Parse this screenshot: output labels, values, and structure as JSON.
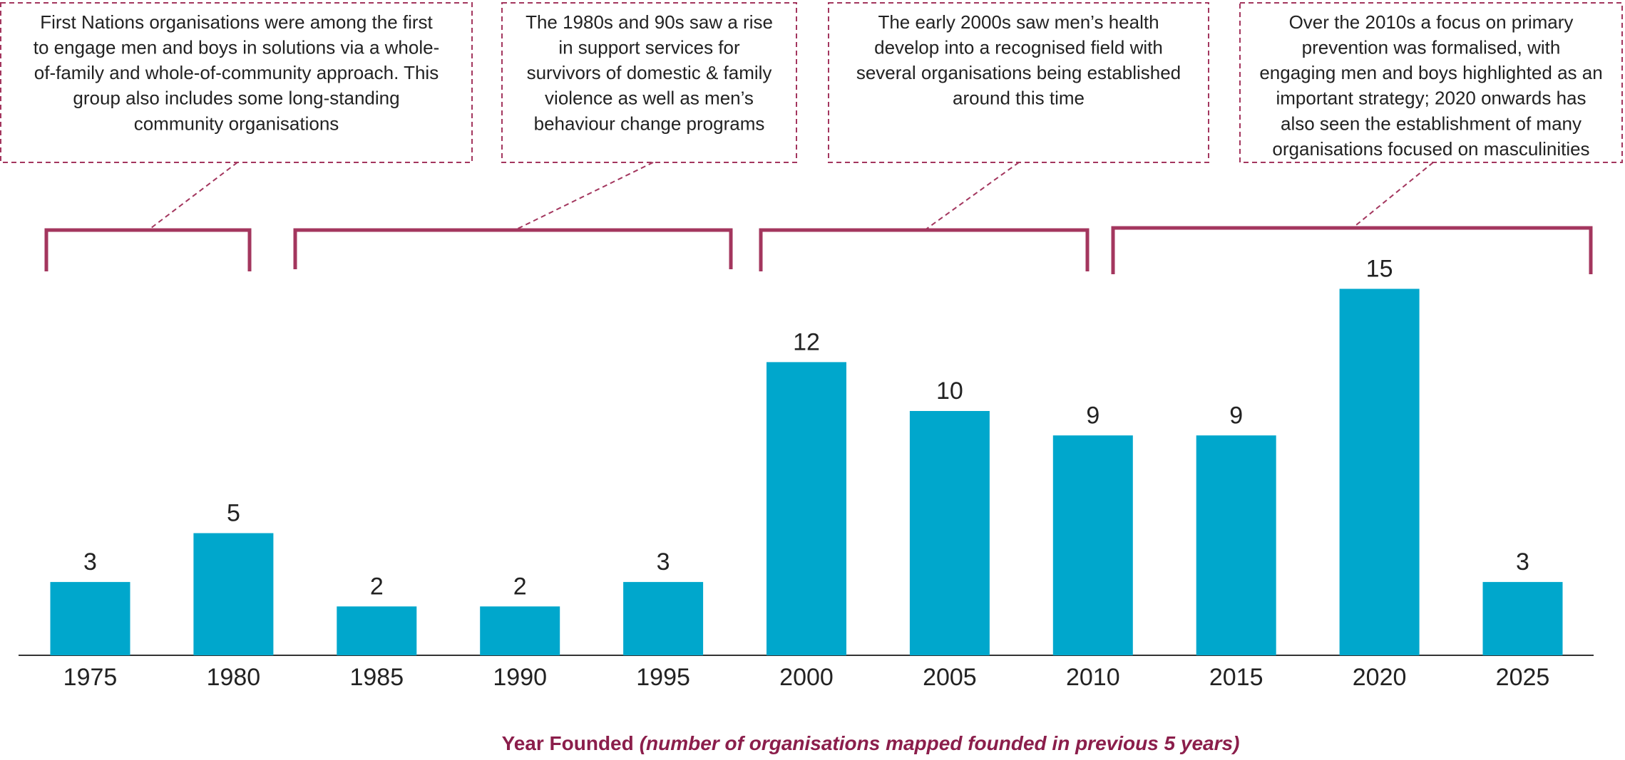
{
  "chart_data": {
    "type": "bar",
    "categories": [
      "1975",
      "1980",
      "1985",
      "1990",
      "1995",
      "2000",
      "2005",
      "2010",
      "2015",
      "2020",
      "2025"
    ],
    "values": [
      3,
      5,
      2,
      2,
      3,
      12,
      10,
      9,
      9,
      15,
      3
    ],
    "color": "#00a7cc",
    "x_label": "Year Founded",
    "x_label_note": "(number of organisations mapped founded in previous 5 years)",
    "annotations": [
      {
        "lines": [
          "First Nations organisations were among the first",
          "to engage men and boys in solutions via a whole-",
          "of-family and whole-of-community approach. This",
          "group also includes some long-standing",
          "community organisations"
        ]
      },
      {
        "lines": [
          "The 1980s and 90s saw a rise",
          "in support services for",
          "survivors of domestic & family",
          "violence as well as men’s",
          "behaviour change programs"
        ]
      },
      {
        "lines": [
          "The early 2000s saw men’s health",
          "develop into a recognised field with",
          "several organisations being established",
          "around this time"
        ]
      },
      {
        "lines": [
          "Over the 2010s a focus on primary",
          "prevention was formalised, with",
          "engaging men and boys highlighted as an",
          "important strategy; 2020 onwards has",
          "also seen the establishment of many",
          "organisations focused on masculinities"
        ]
      }
    ]
  }
}
